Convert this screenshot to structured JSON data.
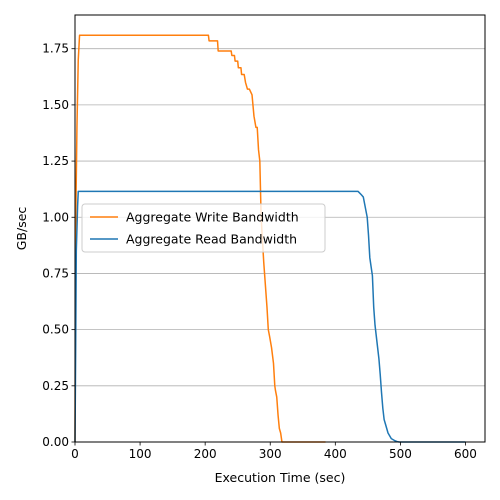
{
  "chart_data": {
    "type": "line",
    "title": "",
    "xlabel": "Execution Time (sec)",
    "ylabel": "GB/sec",
    "xlim": [
      0,
      630
    ],
    "ylim": [
      0,
      1.9
    ],
    "x_ticks": [
      0,
      100,
      200,
      300,
      400,
      500,
      600
    ],
    "y_ticks": [
      0.0,
      0.25,
      0.5,
      0.75,
      1.0,
      1.25,
      1.5,
      1.75
    ],
    "x_tick_labels": [
      "0",
      "100",
      "200",
      "300",
      "400",
      "500",
      "600"
    ],
    "y_tick_labels": [
      "0.00",
      "0.25",
      "0.50",
      "0.75",
      "1.00",
      "1.25",
      "1.50",
      "1.75"
    ],
    "grid": "horizontal",
    "legend_placement": "center-left",
    "series": [
      {
        "name": "Aggregate Write Bandwidth",
        "color": "#ff7f0e",
        "x": [
          0,
          1,
          3,
          5,
          7,
          205,
          206,
          219,
          220,
          240,
          241,
          245,
          246,
          250,
          251,
          255,
          256,
          260,
          262,
          265,
          268,
          272,
          275,
          278,
          280,
          282,
          284,
          286,
          288,
          290,
          292,
          295,
          297,
          299,
          302,
          305,
          307,
          308,
          310,
          312,
          314,
          316,
          318,
          320,
          323,
          330,
          385
        ],
        "y": [
          0,
          0.95,
          1.4,
          1.7,
          1.81,
          1.81,
          1.785,
          1.785,
          1.74,
          1.74,
          1.72,
          1.72,
          1.695,
          1.695,
          1.665,
          1.665,
          1.635,
          1.635,
          1.6,
          1.57,
          1.57,
          1.545,
          1.45,
          1.4,
          1.4,
          1.3,
          1.25,
          1.0,
          0.9,
          0.8,
          0.72,
          0.6,
          0.5,
          0.47,
          0.42,
          0.35,
          0.25,
          0.23,
          0.2,
          0.12,
          0.06,
          0.04,
          0.0,
          0.0,
          0.0,
          0.0,
          0.0
        ]
      },
      {
        "name": "Aggregate Read Bandwidth",
        "color": "#1f77b4",
        "x": [
          0,
          1,
          2,
          4,
          5,
          435,
          440,
          443,
          445,
          447,
          449,
          451,
          453,
          455,
          457,
          459,
          461,
          463,
          465,
          467,
          469,
          471,
          473,
          475,
          477,
          479,
          481,
          483,
          486,
          489,
          492,
          495,
          498,
          500,
          505,
          560,
          600
        ],
        "y": [
          0,
          0.4,
          0.85,
          1.05,
          1.115,
          1.115,
          1.1,
          1.09,
          1.06,
          1.03,
          1.0,
          0.92,
          0.82,
          0.78,
          0.74,
          0.6,
          0.52,
          0.47,
          0.42,
          0.37,
          0.3,
          0.22,
          0.15,
          0.1,
          0.08,
          0.06,
          0.04,
          0.03,
          0.015,
          0.01,
          0.005,
          0.002,
          0.0,
          0.0,
          0.0,
          0.0,
          0.0
        ]
      }
    ]
  }
}
